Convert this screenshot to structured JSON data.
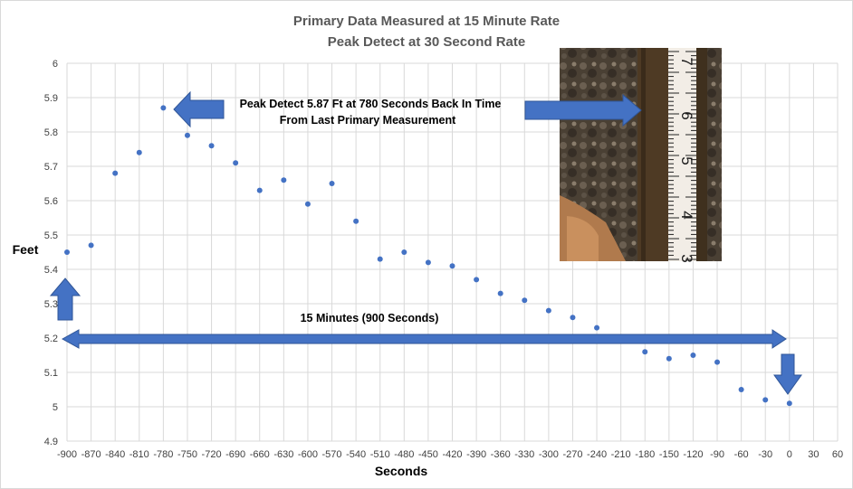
{
  "chart_data": {
    "type": "scatter",
    "title": "Primary Data Measured at 15 Minute Rate",
    "subtitle": "Peak Detect at 30 Second Rate",
    "xlabel": "Seconds",
    "ylabel": "Feet",
    "xlim": [
      -900,
      60
    ],
    "ylim": [
      4.9,
      6
    ],
    "x_ticks": [
      "-900",
      "-870",
      "-840",
      "-810",
      "-780",
      "-750",
      "-720",
      "-690",
      "-660",
      "-630",
      "-600",
      "-570",
      "-540",
      "-510",
      "-480",
      "-450",
      "-420",
      "-390",
      "-360",
      "-330",
      "-300",
      "-270",
      "-240",
      "-210",
      "-180",
      "-150",
      "-120",
      "-90",
      "-60",
      "-30",
      "0",
      "30",
      "60"
    ],
    "y_ticks": [
      "4.9",
      "5",
      "5.1",
      "5.2",
      "5.3",
      "5.4",
      "5.5",
      "5.6",
      "5.7",
      "5.8",
      "5.9",
      "6"
    ],
    "grid": true,
    "marker_color": "#4472c4",
    "points": [
      {
        "x": -900,
        "y": 5.45
      },
      {
        "x": -870,
        "y": 5.47
      },
      {
        "x": -840,
        "y": 5.68
      },
      {
        "x": -810,
        "y": 5.74
      },
      {
        "x": -780,
        "y": 5.87
      },
      {
        "x": -750,
        "y": 5.79
      },
      {
        "x": -720,
        "y": 5.76
      },
      {
        "x": -690,
        "y": 5.71
      },
      {
        "x": -660,
        "y": 5.63
      },
      {
        "x": -630,
        "y": 5.66
      },
      {
        "x": -600,
        "y": 5.59
      },
      {
        "x": -570,
        "y": 5.65
      },
      {
        "x": -540,
        "y": 5.54
      },
      {
        "x": -510,
        "y": 5.43
      },
      {
        "x": -480,
        "y": 5.45
      },
      {
        "x": -450,
        "y": 5.42
      },
      {
        "x": -420,
        "y": 5.41
      },
      {
        "x": -390,
        "y": 5.37
      },
      {
        "x": -360,
        "y": 5.33
      },
      {
        "x": -330,
        "y": 5.31
      },
      {
        "x": -300,
        "y": 5.28
      },
      {
        "x": -270,
        "y": 5.26
      },
      {
        "x": -240,
        "y": 5.23
      },
      {
        "x": -180,
        "y": 5.16
      },
      {
        "x": -150,
        "y": 5.14
      },
      {
        "x": -120,
        "y": 5.15
      },
      {
        "x": -90,
        "y": 5.13
      },
      {
        "x": -60,
        "y": 5.05
      },
      {
        "x": -30,
        "y": 5.02
      },
      {
        "x": 0,
        "y": 5.01
      }
    ],
    "annotations": {
      "peak_line1": "Peak Detect 5.87 Ft at 780 Seconds Back In Time",
      "peak_line2": "From Last Primary Measurement",
      "span_label": "15 Minutes  (900 Seconds)"
    },
    "arrow_color": "#4472c4",
    "photo": {
      "ruler_numbers": [
        "7",
        "6",
        "5",
        "4",
        "3"
      ]
    }
  }
}
